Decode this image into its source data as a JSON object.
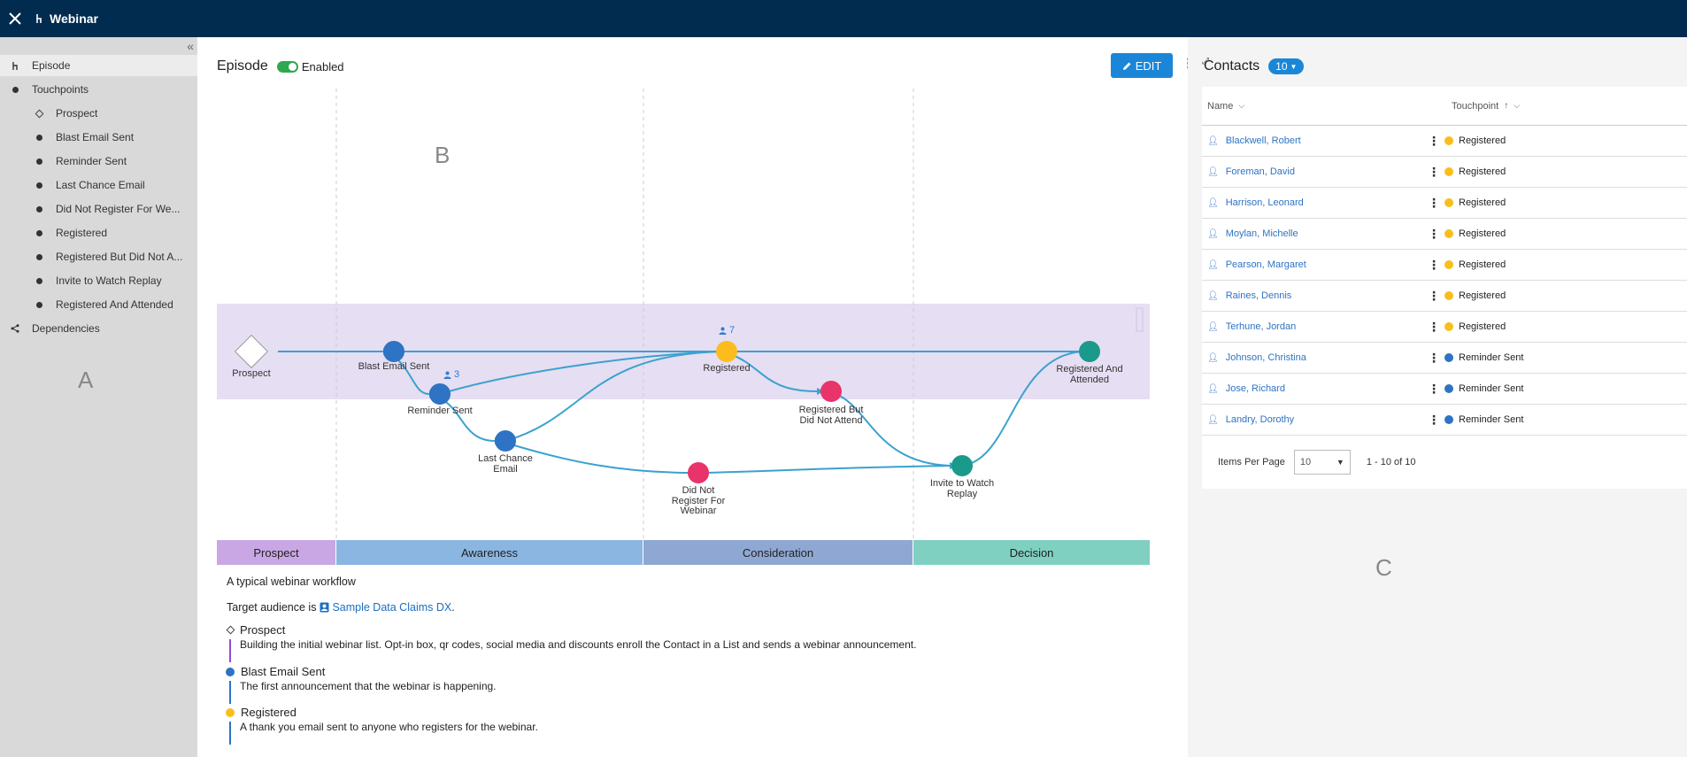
{
  "app": {
    "title": "Webinar"
  },
  "sidebar": {
    "items": [
      {
        "label": "Episode",
        "icon": "episode-icon"
      },
      {
        "label": "Touchpoints",
        "icon": "dot-icon"
      },
      {
        "label": "Prospect",
        "icon": "diamond-icon"
      },
      {
        "label": "Blast Email Sent",
        "icon": "dot-icon"
      },
      {
        "label": "Reminder Sent",
        "icon": "dot-icon"
      },
      {
        "label": "Last Chance Email",
        "icon": "dot-icon"
      },
      {
        "label": "Did Not Register For We...",
        "icon": "dot-icon"
      },
      {
        "label": "Registered",
        "icon": "dot-icon"
      },
      {
        "label": "Registered But Did Not A...",
        "icon": "dot-icon"
      },
      {
        "label": "Invite to Watch Replay",
        "icon": "dot-icon"
      },
      {
        "label": "Registered And Attended",
        "icon": "dot-icon"
      },
      {
        "label": "Dependencies",
        "icon": "share-icon"
      }
    ],
    "zone_label": "A"
  },
  "episode": {
    "title": "Episode",
    "enabled_label": "Enabled",
    "edit_label": "EDIT",
    "zone_label": "B"
  },
  "diagram": {
    "nodes": {
      "prospect": {
        "label": "Prospect"
      },
      "blast": {
        "label": "Blast Email Sent"
      },
      "reminder": {
        "label": "Reminder Sent",
        "count": "3"
      },
      "last_chance": {
        "label_line1": "Last Chance",
        "label_line2": "Email"
      },
      "did_not_register": {
        "label_line1": "Did Not",
        "label_line2": "Register For",
        "label_line3": "Webinar"
      },
      "registered": {
        "label": "Registered",
        "count": "7"
      },
      "reg_not_attend": {
        "label_line1": "Registered But",
        "label_line2": "Did Not Attend"
      },
      "invite_replay": {
        "label_line1": "Invite to Watch",
        "label_line2": "Replay"
      },
      "reg_attended": {
        "label_line1": "Registered And",
        "label_line2": "Attended"
      }
    },
    "stages": [
      "Prospect",
      "Awareness",
      "Consideration",
      "Decision"
    ],
    "colors": {
      "blue": "#2e73c4",
      "yellow": "#fbbd1d",
      "pink": "#e8336b",
      "teal": "#1a9a8a",
      "edge": "#3aa2cf",
      "band": "#e6def2"
    }
  },
  "description": {
    "text": "A typical webinar workflow",
    "target_prefix": "Target audience is",
    "target_link": "Sample Data Claims DX",
    "target_suffix": ".",
    "touchpoints": [
      {
        "name": "Prospect",
        "desc": "Building the initial webinar list. Opt-in box, qr codes, social media and discounts enroll the Contact in a List and sends a webinar announcement."
      },
      {
        "name": "Blast Email Sent",
        "desc": "The first announcement that the webinar is happening."
      },
      {
        "name": "Registered",
        "desc": "A thank you email sent to anyone who registers for the webinar."
      }
    ]
  },
  "contacts": {
    "title": "Contacts",
    "count": "10",
    "columns": {
      "name": "Name",
      "touchpoint": "Touchpoint"
    },
    "rows": [
      {
        "name": "Blackwell, Robert",
        "touchpoint": "Registered",
        "color": "#fbbd1d"
      },
      {
        "name": "Foreman, David",
        "touchpoint": "Registered",
        "color": "#fbbd1d"
      },
      {
        "name": "Harrison, Leonard",
        "touchpoint": "Registered",
        "color": "#fbbd1d"
      },
      {
        "name": "Moylan, Michelle",
        "touchpoint": "Registered",
        "color": "#fbbd1d"
      },
      {
        "name": "Pearson, Margaret",
        "touchpoint": "Registered",
        "color": "#fbbd1d"
      },
      {
        "name": "Raines, Dennis",
        "touchpoint": "Registered",
        "color": "#fbbd1d"
      },
      {
        "name": "Terhune, Jordan",
        "touchpoint": "Registered",
        "color": "#fbbd1d"
      },
      {
        "name": "Johnson, Christina",
        "touchpoint": "Reminder Sent",
        "color": "#2e73c4"
      },
      {
        "name": "Jose, Richard",
        "touchpoint": "Reminder Sent",
        "color": "#2e73c4"
      },
      {
        "name": "Landry, Dorothy",
        "touchpoint": "Reminder Sent",
        "color": "#2e73c4"
      }
    ],
    "pager": {
      "items_per_page_label": "Items Per Page",
      "per_page_value": "10",
      "range": "1 - 10 of 10"
    },
    "zone_label": "C"
  }
}
